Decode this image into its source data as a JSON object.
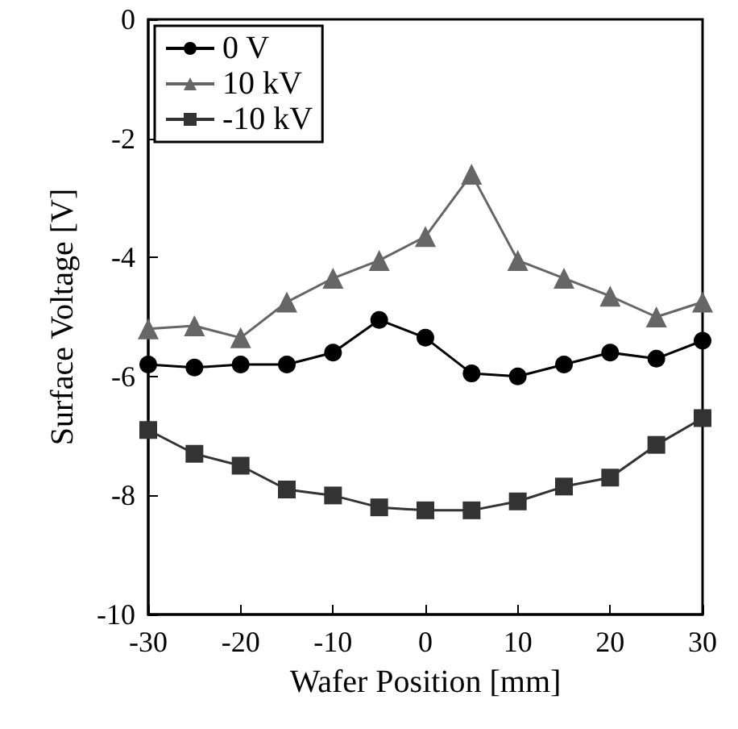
{
  "chart_data": {
    "type": "line",
    "xlabel": "Wafer Position [mm]",
    "ylabel": "Surface Voltage [V]",
    "x": [
      -30,
      -25,
      -20,
      -15,
      -10,
      -5,
      0,
      5,
      10,
      15,
      20,
      25,
      30
    ],
    "series": [
      {
        "name": "0 V",
        "color": "#000000",
        "marker": "circle",
        "values": [
          -5.8,
          -5.85,
          -5.8,
          -5.8,
          -5.6,
          -5.05,
          -5.35,
          -5.95,
          -6.0,
          -5.8,
          -5.6,
          -5.7,
          -5.4
        ]
      },
      {
        "name": "10 kV",
        "color": "#666666",
        "marker": "triangle",
        "values": [
          -5.2,
          -5.15,
          -5.35,
          -4.75,
          -4.35,
          -4.05,
          -3.65,
          -2.6,
          -4.05,
          -4.35,
          -4.65,
          -5.0,
          -4.75
        ]
      },
      {
        "name": "-10 kV",
        "color": "#333333",
        "marker": "square",
        "values": [
          -6.9,
          -7.3,
          -7.5,
          -7.9,
          -8.0,
          -8.2,
          -8.25,
          -8.25,
          -8.1,
          -7.85,
          -7.7,
          -7.15,
          -6.7
        ]
      }
    ],
    "xlim": [
      -30,
      30
    ],
    "xticks": [
      -30,
      -20,
      -10,
      0,
      10,
      20,
      30
    ],
    "ylim": [
      -10,
      0
    ],
    "yticks": [
      -10,
      -8,
      -6,
      -4,
      -2,
      0
    ],
    "grid": false,
    "legend": "top left",
    "line_style": "solid"
  }
}
